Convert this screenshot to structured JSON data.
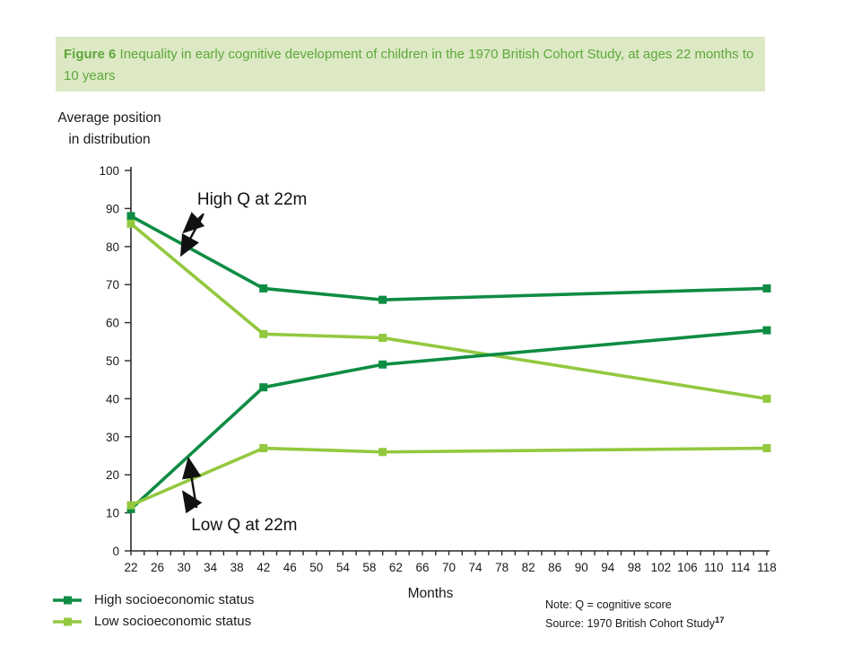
{
  "banner": {
    "label": "Figure 6",
    "title": "Inequality in early cognitive development of children in the 1970 British Cohort Study, at ages 22 months to 10 years",
    "bg": "#DCE9C4",
    "text_color": "#5FA73C"
  },
  "colors": {
    "dark_green": "#0E8C43",
    "light_green": "#93C83F",
    "axis": "#2B2B2B",
    "text": "#1A1A1A",
    "annotation": "#111111"
  },
  "chart_data": {
    "type": "line",
    "xlabel": "Months",
    "ylabel": "Average position\nin distribution",
    "x": [
      22,
      42,
      60,
      118
    ],
    "x_min": 22,
    "x_max": 118,
    "x_label_step": 4,
    "x_tick_step": 2,
    "ylim": [
      0,
      100
    ],
    "y_tick_step": 10,
    "grid": false,
    "legend_position": "bottom-left",
    "series": [
      {
        "name": "High socioeconomic status, high Q at 22 months",
        "color": "dark_green",
        "values": [
          88,
          69,
          66,
          69
        ]
      },
      {
        "name": "Low socioeconomic status, high Q at 22 months",
        "color": "light_green",
        "values": [
          86,
          57,
          56,
          40
        ]
      },
      {
        "name": "High socioeconomic status, low Q at 22 months",
        "color": "dark_green",
        "values": [
          11,
          43,
          49,
          58
        ]
      },
      {
        "name": "Low socioeconomic status, low Q at 22 months",
        "color": "light_green",
        "values": [
          12,
          27,
          26,
          27
        ]
      }
    ],
    "annotations": [
      {
        "text": "High Q at 22m",
        "text_month": 32.0,
        "text_value": 91.0,
        "arrows": [
          {
            "from_month": 33.0,
            "from_value": 88.6,
            "to_month": 30.0,
            "to_value": 83.8
          },
          {
            "from_month": 32.8,
            "from_value": 88.0,
            "to_month": 29.6,
            "to_value": 77.8
          }
        ]
      },
      {
        "text": "Low Q at 22m",
        "text_month": 31.1,
        "text_value": 5.4,
        "arrows": [
          {
            "from_month": 31.9,
            "from_value": 11.3,
            "to_month": 30.7,
            "to_value": 24.2
          },
          {
            "from_month": 31.4,
            "from_value": 11.6,
            "to_month": 29.9,
            "to_value": 15.5
          }
        ]
      }
    ]
  },
  "legend": [
    {
      "label": "High socioeconomic status",
      "color": "dark_green"
    },
    {
      "label": "Low socioeconomic status",
      "color": "light_green"
    }
  ],
  "notes": {
    "note": "Note: Q = cognitive score",
    "source": "Source: 1970 British Cohort Study",
    "source_sup": "17"
  }
}
